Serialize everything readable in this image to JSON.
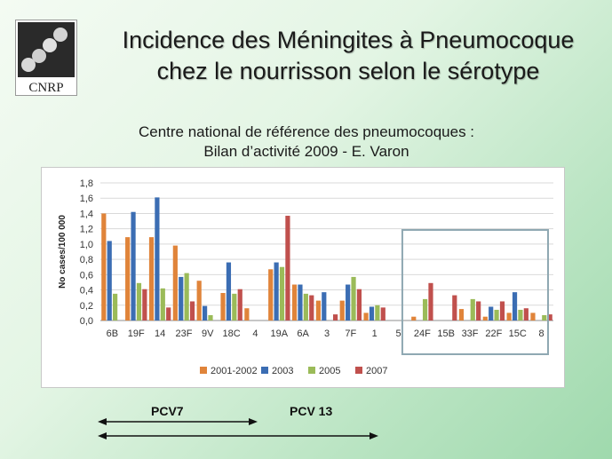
{
  "title_line1": "Incidence des Méningites à Pneumocoque",
  "title_line2": "chez le nourrisson selon le sérotype",
  "subtitle_line1": "Centre national de référence des pneumocoques :",
  "subtitle_line2": "Bilan d’activité 2009 - E. Varon",
  "logo_text": "CNRP",
  "pcv7_label": "PCV7",
  "pcv13_label": "PCV 13",
  "chart_data": {
    "type": "bar",
    "ylabel": "No cases/100 000",
    "ylim": [
      0,
      1.8
    ],
    "yticks": [
      "0,0",
      "0,2",
      "0,4",
      "0,6",
      "0,8",
      "1,0",
      "1,2",
      "1,4",
      "1,6",
      "1,8"
    ],
    "grid": true,
    "legend_position": "bottom",
    "categories": [
      "6B",
      "19F",
      "14",
      "23F",
      "9V",
      "18C",
      "4",
      "19A",
      "6A",
      "3",
      "7F",
      "1",
      "5",
      "24F",
      "15B",
      "33F",
      "22F",
      "15C",
      "8"
    ],
    "series": [
      {
        "name": "2001-2002",
        "color": "#e0843a",
        "values": [
          1.4,
          1.09,
          1.09,
          0.98,
          0.52,
          0.36,
          0.16,
          0.67,
          0.47,
          0.26,
          0.26,
          0.1,
          0,
          0.05,
          0,
          0.15,
          0.05,
          0.1,
          0.1
        ]
      },
      {
        "name": "2003",
        "color": "#3b6db3",
        "values": [
          1.04,
          1.42,
          1.61,
          0.57,
          0.19,
          0.76,
          0,
          0.76,
          0.47,
          0.37,
          0.47,
          0.18,
          0,
          0,
          0,
          0,
          0.18,
          0.37,
          0
        ]
      },
      {
        "name": "2005",
        "color": "#9bbb59",
        "values": [
          0.35,
          0.49,
          0.42,
          0.62,
          0.07,
          0.35,
          0,
          0.7,
          0.35,
          0,
          0.57,
          0.2,
          0,
          0.28,
          0,
          0.28,
          0.14,
          0.14,
          0.07
        ]
      },
      {
        "name": "2007",
        "color": "#c0504d",
        "values": [
          0,
          0.41,
          0.17,
          0.25,
          0,
          0.41,
          0,
          1.37,
          0.33,
          0.08,
          0.41,
          0.17,
          0,
          0.49,
          0.33,
          0.25,
          0.25,
          0.16,
          0.08
        ]
      }
    ]
  }
}
